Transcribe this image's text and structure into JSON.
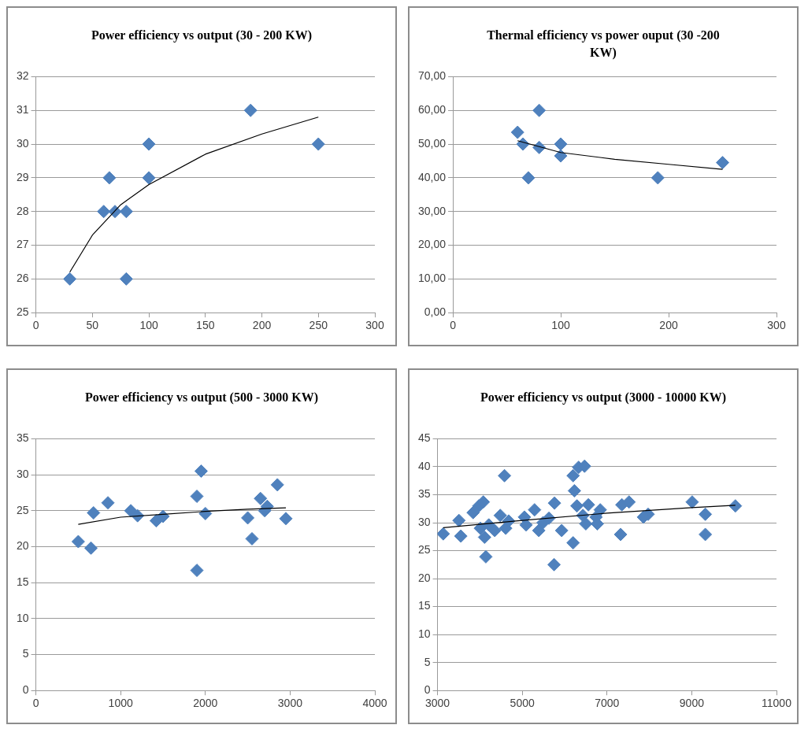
{
  "chart_data": [
    {
      "type": "scatter",
      "title": "Power efficiency vs output (30 - 200 KW)",
      "xlim": [
        0,
        300
      ],
      "xticks": [
        0,
        50,
        100,
        150,
        200,
        250,
        300
      ],
      "ylim": [
        25,
        32
      ],
      "yticks": [
        25,
        26,
        27,
        28,
        29,
        30,
        31,
        32
      ],
      "grid": "y",
      "legend": false,
      "marker": "diamond",
      "series": [
        {
          "color": "#4f81bd",
          "x": [
            30,
            60,
            65,
            70,
            80,
            80,
            100,
            100,
            190,
            250
          ],
          "values": [
            26,
            28,
            29,
            28,
            28,
            26,
            30,
            29,
            31,
            30
          ]
        },
        {
          "type": "line",
          "color": "#000000",
          "marker": "none",
          "x": [
            30,
            50,
            75,
            100,
            150,
            200,
            250
          ],
          "values": [
            26.2,
            27.3,
            28.2,
            28.8,
            29.7,
            30.3,
            30.8
          ]
        }
      ]
    },
    {
      "type": "scatter",
      "title": "Thermal efficiency vs power ouput (30 -200 KW)",
      "xlim": [
        0,
        300
      ],
      "xticks": [
        0,
        100,
        200,
        300
      ],
      "ylim": [
        0,
        70
      ],
      "yticks": [
        {
          "value": 0,
          "label": "0,00"
        },
        {
          "value": 10,
          "label": "10,00"
        },
        {
          "value": 20,
          "label": "20,00"
        },
        {
          "value": 30,
          "label": "30,00"
        },
        {
          "value": 40,
          "label": "40,00"
        },
        {
          "value": 50,
          "label": "50,00"
        },
        {
          "value": 60,
          "label": "60,00"
        },
        {
          "value": 70,
          "label": "70,00"
        }
      ],
      "grid": "y",
      "legend": false,
      "marker": "diamond",
      "series": [
        {
          "color": "#4f81bd",
          "x": [
            60,
            65,
            70,
            80,
            80,
            100,
            100,
            190,
            250
          ],
          "values": [
            53.5,
            50,
            40,
            60,
            49,
            50,
            46.5,
            40,
            44.5
          ]
        },
        {
          "type": "line",
          "color": "#000000",
          "marker": "none",
          "x": [
            60,
            100,
            150,
            200,
            250
          ],
          "values": [
            51,
            47.5,
            45.5,
            44,
            42.5
          ]
        }
      ]
    },
    {
      "type": "scatter",
      "title": "Power efficiency vs output (500 - 3000 KW)",
      "xlim": [
        0,
        4000
      ],
      "xticks": [
        0,
        1000,
        2000,
        3000,
        4000
      ],
      "ylim": [
        0,
        35
      ],
      "yticks": [
        0,
        5,
        10,
        15,
        20,
        25,
        30,
        35
      ],
      "grid": "y",
      "legend": false,
      "marker": "diamond",
      "series": [
        {
          "color": "#4f81bd",
          "x": [
            500,
            650,
            680,
            850,
            1080,
            1120,
            1200,
            1420,
            1500,
            1900,
            1950,
            1900,
            2000,
            2500,
            2550,
            2650,
            2700,
            2730,
            2850,
            2930,
            2950
          ],
          "values": [
            20.7,
            19.8,
            24.7,
            26.1,
            null,
            25,
            24.3,
            23.6,
            24.2,
            27,
            30.5,
            16.7,
            24.6,
            24,
            21.1,
            26.7,
            25,
            25.6,
            28.6,
            null,
            23.9
          ]
        },
        {
          "type": "line",
          "color": "#000000",
          "marker": "none",
          "x": [
            500,
            1000,
            1500,
            2000,
            2500,
            2950
          ],
          "values": [
            23.1,
            24.1,
            24.5,
            24.9,
            25.2,
            25.4
          ]
        }
      ]
    },
    {
      "type": "scatter",
      "title": "Power efficiency vs output  (3000 - 10000 KW)",
      "xlim": [
        3000,
        11000
      ],
      "xticks": [
        3000,
        5000,
        7000,
        9000,
        11000
      ],
      "ylim": [
        0,
        45
      ],
      "yticks": [
        0,
        5,
        10,
        15,
        20,
        25,
        30,
        35,
        40,
        45
      ],
      "grid": "y",
      "legend": false,
      "marker": "diamond",
      "series": [
        {
          "color": "#4f81bd",
          "x": [
            3135,
            3505,
            3550,
            3840,
            3975,
            4080,
            4010,
            4110,
            4140,
            4210,
            4350,
            4480,
            4580,
            4610,
            4680,
            5050,
            5090,
            5290,
            5390,
            5490,
            5630,
            5760,
            5750,
            5930,
            6200,
            6230,
            6200,
            6330,
            6470,
            6290,
            6430,
            6560,
            6500,
            6740,
            6840,
            6770,
            7350,
            7520,
            7320,
            7970,
            7860,
            9010,
            9320,
            9320,
            10030
          ],
          "values": [
            28,
            30.4,
            27.6,
            31.8,
            33,
            33.7,
            29,
            27.4,
            23.9,
            29.6,
            28.6,
            31.3,
            38.4,
            29,
            30.3,
            31,
            29.6,
            32.3,
            28.6,
            30,
            30.8,
            33.5,
            22.5,
            28.6,
            26.4,
            35.7,
            38.4,
            39.9,
            40.1,
            33,
            31.3,
            33.2,
            29.8,
            31,
            32.3,
            29.8,
            33.2,
            33.7,
            27.9,
            31.5,
            31,
            33.7,
            31.5,
            27.9,
            33
          ]
        },
        {
          "type": "line",
          "color": "#000000",
          "marker": "none",
          "x": [
            3135,
            5000,
            7000,
            9000,
            10030
          ],
          "values": [
            29.1,
            30.4,
            31.7,
            32.7,
            33.1
          ]
        }
      ]
    }
  ]
}
